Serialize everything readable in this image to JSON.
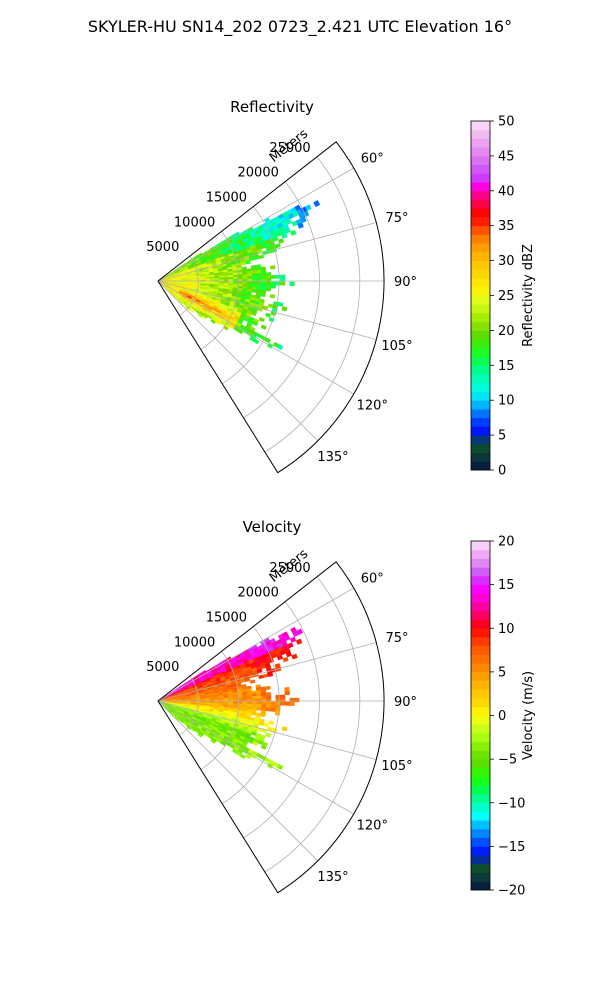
{
  "figure": {
    "suptitle": "SKYLER-HU  SN14_202  0723_2.421 UTC Elevation 16°"
  },
  "chart_data": [
    {
      "type": "heatmap",
      "subtype": "polar-sector-ppi",
      "title": "Reflectivity",
      "radial_label": "Meters",
      "radial_tick_labels": [
        "5000",
        "10000",
        "15000",
        "20000",
        "25000"
      ],
      "radial_ticks": [
        5000,
        10000,
        15000,
        20000,
        25000
      ],
      "rlim": [
        0,
        28000
      ],
      "angular_ticks": [
        60,
        75,
        90,
        105,
        120,
        135
      ],
      "angular_tick_labels": [
        "60°",
        "75°",
        "90°",
        "105°",
        "120°",
        "135°"
      ],
      "theta_range_deg": [
        52,
        148
      ],
      "grid": true,
      "colorbar": {
        "label": "Reflectivity dBZ",
        "min": 0,
        "max": 50,
        "ticks": [
          0,
          5,
          10,
          15,
          20,
          25,
          30,
          35,
          40,
          45,
          50
        ],
        "tick_labels": [
          "0",
          "5",
          "10",
          "15",
          "20",
          "25",
          "30",
          "35",
          "40",
          "45",
          "50"
        ],
        "color_stops": [
          [
            0,
            "#061442"
          ],
          [
            2,
            "#0c3a3a"
          ],
          [
            4,
            "#0a5a2a"
          ],
          [
            5,
            "#0000ff"
          ],
          [
            7,
            "#0040ff"
          ],
          [
            9,
            "#00a0ff"
          ],
          [
            10,
            "#00d8ff"
          ],
          [
            12,
            "#00ffd8"
          ],
          [
            14,
            "#00ff9a"
          ],
          [
            15,
            "#00ff6a"
          ],
          [
            17,
            "#20ff20"
          ],
          [
            19,
            "#50e000"
          ],
          [
            20,
            "#78d800"
          ],
          [
            22,
            "#a8f000"
          ],
          [
            24,
            "#d8ff20"
          ],
          [
            26,
            "#fff000"
          ],
          [
            28,
            "#ffd800"
          ],
          [
            30,
            "#ffc000"
          ],
          [
            32,
            "#ff9c00"
          ],
          [
            34,
            "#ff6a00"
          ],
          [
            35,
            "#ff2c00"
          ],
          [
            37,
            "#ff0000"
          ],
          [
            38,
            "#ff0040"
          ],
          [
            40,
            "#ff00a8"
          ],
          [
            41,
            "#ff00ff"
          ],
          [
            42,
            "#c840ff"
          ],
          [
            44,
            "#d868f0"
          ],
          [
            46,
            "#e890f0"
          ],
          [
            48,
            "#f0b8f0"
          ],
          [
            50,
            "#fce0fc"
          ]
        ]
      },
      "field_summary": {
        "core_value_range": [
          26,
          36
        ],
        "mid_value_range": [
          18,
          26
        ],
        "edge_value_range": [
          12,
          18
        ]
      }
    },
    {
      "type": "heatmap",
      "subtype": "polar-sector-ppi",
      "title": "Velocity",
      "radial_label": "Meters",
      "radial_tick_labels": [
        "5000",
        "10000",
        "15000",
        "20000",
        "25000"
      ],
      "radial_ticks": [
        5000,
        10000,
        15000,
        20000,
        25000
      ],
      "rlim": [
        0,
        28000
      ],
      "angular_ticks": [
        60,
        75,
        90,
        105,
        120,
        135
      ],
      "angular_tick_labels": [
        "60°",
        "75°",
        "90°",
        "105°",
        "120°",
        "135°"
      ],
      "theta_range_deg": [
        52,
        148
      ],
      "grid": true,
      "colorbar": {
        "label": "Velocity (m/s)",
        "min": -20,
        "max": 20,
        "ticks": [
          -20,
          -15,
          -10,
          -5,
          0,
          5,
          10,
          15,
          20
        ],
        "tick_labels": [
          "−20",
          "−15",
          "−10",
          "−5",
          "0",
          "5",
          "10",
          "15",
          "20"
        ],
        "color_stops": [
          [
            -20,
            "#061442"
          ],
          [
            -18.5,
            "#0c3a3a"
          ],
          [
            -17,
            "#0a5a2a"
          ],
          [
            -16,
            "#0000ff"
          ],
          [
            -14.5,
            "#0050ff"
          ],
          [
            -13,
            "#00a0ff"
          ],
          [
            -11.5,
            "#00ffff"
          ],
          [
            -10,
            "#00ffb0"
          ],
          [
            -8.5,
            "#00ff50"
          ],
          [
            -7,
            "#20ff00"
          ],
          [
            -5.5,
            "#58e000"
          ],
          [
            -4,
            "#78e800"
          ],
          [
            -2.5,
            "#a8ff10"
          ],
          [
            -1,
            "#d8ff20"
          ],
          [
            0,
            "#ffff00"
          ],
          [
            1.5,
            "#ffd800"
          ],
          [
            3,
            "#ffc000"
          ],
          [
            4.5,
            "#ffa000"
          ],
          [
            6,
            "#ff7c00"
          ],
          [
            7.5,
            "#ff5a00"
          ],
          [
            9,
            "#ff2c00"
          ],
          [
            10,
            "#ff0000"
          ],
          [
            11.5,
            "#ff0060"
          ],
          [
            13,
            "#ff00c0"
          ],
          [
            14.5,
            "#ff00ff"
          ],
          [
            16,
            "#c840ff"
          ],
          [
            17,
            "#d878f0"
          ],
          [
            18.5,
            "#eea8f4"
          ],
          [
            20,
            "#fce0fc"
          ]
        ]
      },
      "field_summary": {
        "north_sector_value_range": [
          8,
          11
        ],
        "middle_sector_value_range": [
          0,
          5
        ],
        "south_sector_value_range": [
          -7,
          -3
        ],
        "far_north_value_range": [
          12,
          15
        ]
      }
    }
  ]
}
